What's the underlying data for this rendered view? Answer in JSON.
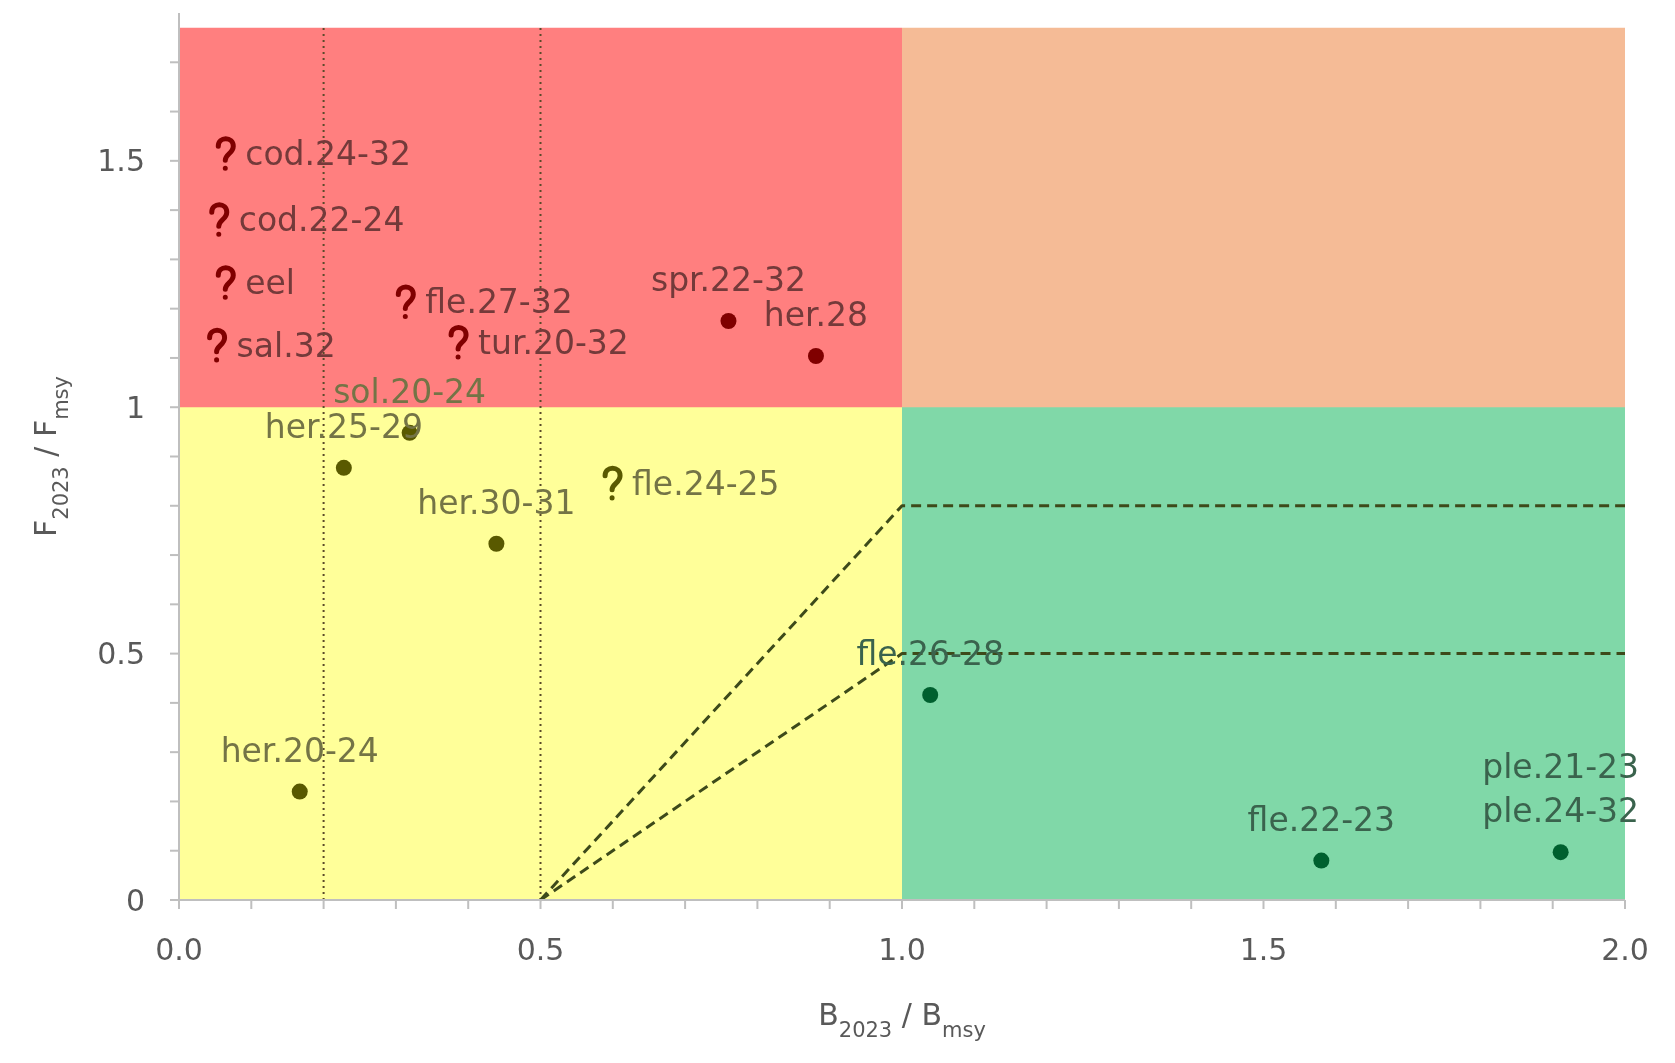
{
  "chart_data": {
    "type": "scatter",
    "xlabel": "B$_{2023}$ / B$_{msy}$",
    "ylabel": "F$_{2023}$ / F$_{msy}$",
    "xlim": [
      0,
      2
    ],
    "ylim": [
      0,
      1.8
    ],
    "xticks": [
      {
        "value": 0,
        "label": "0.0"
      },
      {
        "value": 0.1,
        "label": null
      },
      {
        "value": 0.2,
        "label": null
      },
      {
        "value": 0.3,
        "label": null
      },
      {
        "value": 0.4,
        "label": null
      },
      {
        "value": 0.5,
        "label": "0.5"
      },
      {
        "value": 0.6,
        "label": null
      },
      {
        "value": 0.7,
        "label": null
      },
      {
        "value": 0.8,
        "label": null
      },
      {
        "value": 0.9,
        "label": null
      },
      {
        "value": 1,
        "label": "1.0"
      },
      {
        "value": 1.1,
        "label": null
      },
      {
        "value": 1.2,
        "label": null
      },
      {
        "value": 1.3,
        "label": null
      },
      {
        "value": 1.4,
        "label": null
      },
      {
        "value": 1.5,
        "label": "1.5"
      },
      {
        "value": 1.6,
        "label": null
      },
      {
        "value": 1.7,
        "label": null
      },
      {
        "value": 1.8,
        "label": null
      },
      {
        "value": 1.9,
        "label": null
      },
      {
        "value": 2,
        "label": "2.0"
      }
    ],
    "yticks": [
      0,
      {
        "value": 0.1,
        "label": null
      },
      {
        "value": 0.2,
        "label": null
      },
      {
        "value": 0.3,
        "label": null
      },
      {
        "value": 0.4,
        "label": null
      },
      0.5,
      {
        "value": 0.6,
        "label": null
      },
      {
        "value": 0.7,
        "label": null
      },
      {
        "value": 0.8,
        "label": null
      },
      {
        "value": 0.9,
        "label": null
      },
      1,
      {
        "value": 1.1,
        "label": null
      },
      {
        "value": 1.2,
        "label": null
      },
      {
        "value": 1.3,
        "label": null
      },
      {
        "value": 1.4,
        "label": null
      },
      1.5,
      {
        "value": 1.6,
        "label": null
      },
      {
        "value": 1.7,
        "label": null
      }
    ],
    "grid": false,
    "series": [
      {
        "type": "area",
        "x": [
          0,
          1
        ],
        "values": [
          1.77,
          1.77
        ],
        "color": "#ff7f7f"
      },
      {
        "type": "area",
        "x": [
          1,
          2
        ],
        "values": [
          1.77,
          1.77
        ],
        "color": "#f5bb96"
      },
      {
        "type": "area",
        "x": [
          0,
          1
        ],
        "values": [
          1,
          1
        ],
        "color": "#ffff99"
      },
      {
        "type": "area",
        "x": [
          1,
          2
        ],
        "values": [
          1,
          1
        ],
        "color": "#80d8a8"
      },
      {
        "type": "line",
        "x": [
          0.5,
          1,
          2
        ],
        "values": [
          0,
          0.8,
          0.8
        ],
        "color": "#3d4a1a",
        "line_style": "dashed"
      },
      {
        "type": "line",
        "x": [
          0.5,
          1,
          2
        ],
        "values": [
          0,
          0.5,
          0.5
        ],
        "color": "#3d4a1a",
        "line_style": "dashed"
      },
      {
        "x": [
          0.167,
          0.228,
          0.319,
          0.439,
          0.76,
          0.881,
          1.039,
          1.58,
          1.911
        ],
        "values": [
          0.22,
          0.877,
          0.948,
          0.723,
          1.175,
          1.104,
          0.416,
          0.08,
          0.097
        ],
        "colors": [
          "#595900",
          "#595900",
          "#595900",
          "#595900",
          "#800000",
          "#800000",
          "#00602f",
          "#00602f",
          "#00602f"
        ],
        "marker": "circle"
      },
      {
        "x": [
          0.064,
          0.055,
          0.064,
          0.052,
          0.313,
          0.386,
          0.599
        ],
        "values": [
          1.515,
          1.381,
          1.253,
          1.126,
          1.214,
          1.132,
          0.846
        ],
        "colors": [
          "#800000",
          "#800000",
          "#800000",
          "#800000",
          "#800000",
          "#800000",
          "#595900"
        ]
      }
    ],
    "ref_lines": [
      {
        "axis": "x",
        "value": 0.2,
        "line_style": "dotted",
        "color": "#5a4a2a"
      },
      {
        "axis": "x",
        "value": 0.5,
        "line_style": "dotted",
        "color": "#5a4a2a"
      }
    ],
    "annotations": [
      {
        "text": "her.20-24",
        "x": 0.167,
        "y": 0.22
      },
      {
        "text": "her.25-29",
        "x": 0.228,
        "y": 0.877
      },
      {
        "text": "sol.20-24",
        "x": 0.319,
        "y": 0.948
      },
      {
        "text": "her.30-31",
        "x": 0.439,
        "y": 0.723
      },
      {
        "text": "spr.22-32",
        "x": 0.76,
        "y": 1.175
      },
      {
        "text": "her.28",
        "x": 0.881,
        "y": 1.104
      },
      {
        "text": "fle.26-28",
        "x": 1.039,
        "y": 0.416
      },
      {
        "text": "fle.22-23",
        "x": 1.58,
        "y": 0.08
      },
      {
        "text": "ple.24-32",
        "x": 1.911,
        "y": 0.097
      },
      {
        "text": "ple.21-23",
        "x": 1.911,
        "y": 0.097
      },
      {
        "text": "cod.24-32",
        "x": 0.064,
        "y": 1.515
      },
      {
        "text": "cod.22-24",
        "x": 0.055,
        "y": 1.381
      },
      {
        "text": "eel",
        "x": 0.064,
        "y": 1.253
      },
      {
        "text": "sal.32",
        "x": 0.052,
        "y": 1.126
      },
      {
        "text": "fle.27-32",
        "x": 0.313,
        "y": 1.214
      },
      {
        "text": "tur.20-32",
        "x": 0.386,
        "y": 1.132
      },
      {
        "text": "fle.24-25",
        "x": 0.599,
        "y": 0.846
      }
    ]
  }
}
